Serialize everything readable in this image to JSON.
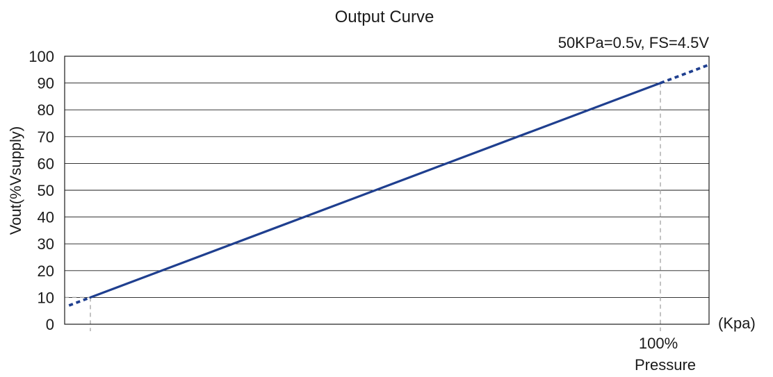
{
  "chart_data": {
    "type": "line",
    "title": "Output Curve",
    "subtitle": "50KPa=0.5v, FS=4.5V",
    "ylabel": "Vout(%Vsupply)",
    "xunit": "(Kpa)",
    "x_tick_label": [
      "100%",
      "Pressure"
    ],
    "ylim": [
      0,
      100
    ],
    "yticks": [
      0,
      10,
      20,
      30,
      40,
      50,
      60,
      70,
      80,
      90,
      100
    ],
    "grid": true,
    "series": [
      {
        "line_color": "#1f3f8f",
        "solid_segment": {
          "x": [
            0,
            100
          ],
          "y": [
            10,
            90
          ]
        },
        "dashed_extension_below": {
          "y": [
            7,
            10
          ]
        },
        "dashed_extension_above": {
          "y": [
            90,
            97
          ]
        }
      }
    ],
    "reference_lines": {
      "x": [
        0,
        100
      ],
      "y": [
        10,
        90
      ],
      "style": "dashed",
      "color": "#999999"
    }
  }
}
